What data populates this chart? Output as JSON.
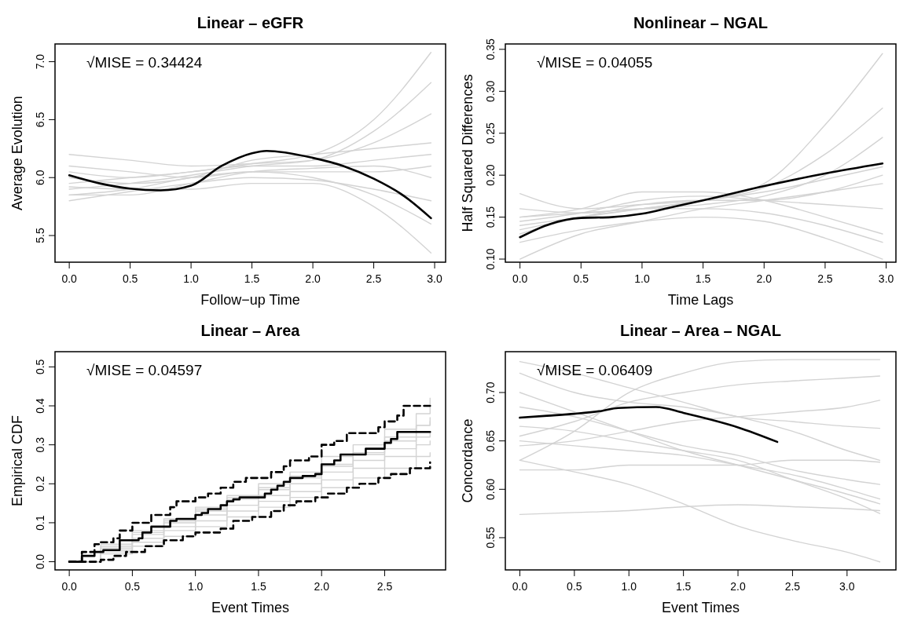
{
  "chart_data": [
    {
      "type": "line",
      "title": "Linear – eGFR",
      "xlabel": "Follow−up Time",
      "ylabel": "Average Evolution",
      "annotations": [
        "√MISE = 0.34424"
      ],
      "xlim": [
        -0.117,
        3.09
      ],
      "ylim": [
        5.27,
        7.153
      ],
      "xticks": [
        {
          "value": 0,
          "label": "0.0"
        },
        {
          "value": 0.5,
          "label": "0.5"
        },
        {
          "value": 1,
          "label": "1.0"
        },
        {
          "value": 1.5,
          "label": "1.5"
        },
        {
          "value": 2,
          "label": "2.0"
        },
        {
          "value": 2.5,
          "label": "2.5"
        },
        {
          "value": 3,
          "label": "3.0"
        }
      ],
      "yticks": [
        {
          "value": 5.5,
          "label": "5.5"
        },
        {
          "value": 6,
          "label": "6.0"
        },
        {
          "value": 6.5,
          "label": "6.5"
        },
        {
          "value": 7,
          "label": "7.0"
        }
      ],
      "x": [
        0,
        0.5,
        1,
        1.5,
        2,
        2.5,
        2.97
      ],
      "series": [
        {
          "color": "#d3d3d3",
          "values": [
            5.95,
            6.0,
            6.05,
            6.12,
            6.2,
            6.5,
            7.08
          ]
        },
        {
          "color": "#d3d3d3",
          "values": [
            5.9,
            5.95,
            6.02,
            6.1,
            6.15,
            6.4,
            6.82
          ]
        },
        {
          "color": "#d3d3d3",
          "values": [
            6.2,
            6.15,
            6.1,
            6.12,
            6.15,
            6.3,
            6.55
          ]
        },
        {
          "color": "#d3d3d3",
          "values": [
            6.05,
            6.0,
            6.05,
            6.1,
            6.1,
            6.15,
            6.2
          ]
        },
        {
          "color": "#d3d3d3",
          "values": [
            5.85,
            5.9,
            6.0,
            6.05,
            6.05,
            6.05,
            6.1
          ]
        },
        {
          "color": "#d3d3d3",
          "values": [
            5.8,
            5.88,
            5.95,
            6.0,
            5.98,
            5.9,
            5.8
          ]
        },
        {
          "color": "#d3d3d3",
          "values": [
            6.1,
            6.05,
            6.0,
            6.05,
            6.0,
            5.85,
            5.6
          ]
        },
        {
          "color": "#d3d3d3",
          "values": [
            5.92,
            5.9,
            5.9,
            5.95,
            5.95,
            5.75,
            5.35
          ]
        },
        {
          "color": "#d3d3d3",
          "values": [
            6.0,
            5.95,
            6.0,
            6.15,
            6.2,
            6.25,
            6.3
          ]
        },
        {
          "color": "#d3d3d3",
          "values": [
            5.85,
            5.85,
            5.95,
            6.05,
            6.08,
            6.1,
            6.0
          ]
        },
        {
          "color": "#000000",
          "x": [
            0,
            0.25,
            0.5,
            0.75,
            1,
            1.25,
            1.5,
            1.62,
            2,
            2.25,
            2.5,
            2.75,
            2.97
          ],
          "values": [
            6.02,
            5.95,
            5.905,
            5.89,
            5.93,
            6.1,
            6.21,
            6.23,
            6.17,
            6.1,
            5.99,
            5.84,
            5.65
          ]
        }
      ]
    },
    {
      "type": "line",
      "title": "Nonlinear – NGAL",
      "xlabel": "Time Lags",
      "ylabel": "Half Squared Differences",
      "annotations": [
        "√MISE = 0.04055"
      ],
      "xlim": [
        -0.12,
        3.08
      ],
      "ylim": [
        0.0963,
        0.3564
      ],
      "xticks": [
        {
          "value": 0,
          "label": "0.0"
        },
        {
          "value": 0.5,
          "label": "0.5"
        },
        {
          "value": 1,
          "label": "1.0"
        },
        {
          "value": 1.5,
          "label": "1.5"
        },
        {
          "value": 2,
          "label": "2.0"
        },
        {
          "value": 2.5,
          "label": "2.5"
        },
        {
          "value": 3,
          "label": "3.0"
        }
      ],
      "yticks": [
        {
          "value": 0.1,
          "label": "0.10"
        },
        {
          "value": 0.15,
          "label": "0.15"
        },
        {
          "value": 0.2,
          "label": "0.20"
        },
        {
          "value": 0.25,
          "label": "0.25"
        },
        {
          "value": 0.3,
          "label": "0.30"
        },
        {
          "value": 0.35,
          "label": "0.35"
        }
      ],
      "x": [
        0,
        0.5,
        1,
        1.5,
        2,
        2.5,
        2.97
      ],
      "series": [
        {
          "color": "#d3d3d3",
          "values": [
            0.14,
            0.15,
            0.16,
            0.17,
            0.19,
            0.26,
            0.345
          ]
        },
        {
          "color": "#d3d3d3",
          "values": [
            0.13,
            0.15,
            0.16,
            0.17,
            0.185,
            0.225,
            0.28
          ]
        },
        {
          "color": "#d3d3d3",
          "values": [
            0.15,
            0.155,
            0.16,
            0.165,
            0.175,
            0.2,
            0.245
          ]
        },
        {
          "color": "#d3d3d3",
          "values": [
            0.178,
            0.16,
            0.165,
            0.17,
            0.18,
            0.195,
            0.21
          ]
        },
        {
          "color": "#d3d3d3",
          "values": [
            0.145,
            0.155,
            0.17,
            0.175,
            0.17,
            0.165,
            0.16
          ]
        },
        {
          "color": "#d3d3d3",
          "values": [
            0.16,
            0.155,
            0.16,
            0.16,
            0.155,
            0.14,
            0.12
          ]
        },
        {
          "color": "#d3d3d3",
          "values": [
            0.12,
            0.135,
            0.145,
            0.15,
            0.145,
            0.125,
            0.1
          ]
        },
        {
          "color": "#d3d3d3",
          "values": [
            0.1,
            0.13,
            0.145,
            0.16,
            0.17,
            0.18,
            0.19
          ]
        },
        {
          "color": "#d3d3d3",
          "values": [
            0.135,
            0.15,
            0.165,
            0.17,
            0.17,
            0.18,
            0.2
          ]
        },
        {
          "color": "#d3d3d3",
          "values": [
            0.15,
            0.16,
            0.18,
            0.18,
            0.17,
            0.15,
            0.13
          ]
        },
        {
          "color": "#000000",
          "x": [
            0,
            0.25,
            0.5,
            0.75,
            1,
            1.25,
            1.5,
            2,
            2.5,
            2.97
          ],
          "values": [
            0.126,
            0.142,
            0.149,
            0.15,
            0.154,
            0.162,
            0.17,
            0.187,
            0.202,
            0.214
          ]
        }
      ]
    },
    {
      "type": "step",
      "title": "Linear – Area",
      "xlabel": "Event Times",
      "ylabel": "Empirical CDF",
      "annotations": [
        "√MISE = 0.04597"
      ],
      "xlim": [
        -0.113,
        2.983
      ],
      "ylim": [
        -0.021,
        0.539
      ],
      "xticks": [
        {
          "value": 0,
          "label": "0.0"
        },
        {
          "value": 0.5,
          "label": "0.5"
        },
        {
          "value": 1,
          "label": "1.0"
        },
        {
          "value": 1.5,
          "label": "1.5"
        },
        {
          "value": 2,
          "label": "2.0"
        },
        {
          "value": 2.5,
          "label": "2.5"
        }
      ],
      "yticks": [
        {
          "value": 0,
          "label": "0.0"
        },
        {
          "value": 0.1,
          "label": "0.1"
        },
        {
          "value": 0.2,
          "label": "0.2"
        },
        {
          "value": 0.3,
          "label": "0.3"
        },
        {
          "value": 0.4,
          "label": "0.4"
        },
        {
          "value": 0.5,
          "label": "0.5"
        }
      ],
      "x": [
        0,
        0.25,
        0.5,
        0.75,
        1,
        1.25,
        1.5,
        1.75,
        2,
        2.25,
        2.5,
        2.75,
        2.86
      ],
      "series": [
        {
          "color": "#d3d3d3",
          "values": [
            0,
            0.03,
            0.06,
            0.09,
            0.12,
            0.145,
            0.17,
            0.2,
            0.23,
            0.26,
            0.29,
            0.32,
            0.33
          ]
        },
        {
          "color": "#d3d3d3",
          "values": [
            0,
            0.045,
            0.08,
            0.11,
            0.14,
            0.17,
            0.2,
            0.23,
            0.27,
            0.3,
            0.34,
            0.38,
            0.42
          ]
        },
        {
          "color": "#d3d3d3",
          "values": [
            0,
            0.02,
            0.04,
            0.065,
            0.09,
            0.115,
            0.14,
            0.165,
            0.19,
            0.215,
            0.24,
            0.27,
            0.28
          ]
        },
        {
          "color": "#d3d3d3",
          "values": [
            0,
            0.035,
            0.07,
            0.1,
            0.13,
            0.16,
            0.185,
            0.215,
            0.245,
            0.275,
            0.31,
            0.35,
            0.37
          ]
        },
        {
          "color": "#d3d3d3",
          "values": [
            0,
            0.025,
            0.05,
            0.08,
            0.105,
            0.13,
            0.155,
            0.18,
            0.21,
            0.24,
            0.27,
            0.3,
            0.31
          ]
        },
        {
          "color": "#d3d3d3",
          "values": [
            0,
            0.04,
            0.075,
            0.105,
            0.135,
            0.165,
            0.19,
            0.22,
            0.25,
            0.28,
            0.32,
            0.35,
            0.36
          ]
        },
        {
          "color": "#000000",
          "line_style": "dashed",
          "x": [
            0,
            0.1,
            0.2,
            0.25,
            0.35,
            0.4,
            0.5,
            0.65,
            0.8,
            0.85,
            1,
            1.1,
            1.2,
            1.3,
            1.4,
            1.6,
            1.7,
            1.75,
            1.9,
            2,
            2.1,
            2.2,
            2.45,
            2.5,
            2.6,
            2.65,
            2.86
          ],
          "values": [
            0,
            0.025,
            0.045,
            0.05,
            0.06,
            0.08,
            0.1,
            0.12,
            0.14,
            0.155,
            0.165,
            0.175,
            0.19,
            0.205,
            0.215,
            0.23,
            0.245,
            0.26,
            0.27,
            0.3,
            0.31,
            0.33,
            0.345,
            0.36,
            0.375,
            0.4,
            0.4
          ]
        },
        {
          "color": "#000000",
          "line_style": "dashed",
          "x": [
            0,
            0.15,
            0.25,
            0.35,
            0.45,
            0.6,
            0.75,
            0.9,
            1,
            1.2,
            1.3,
            1.45,
            1.6,
            1.7,
            1.8,
            1.95,
            2.05,
            2.2,
            2.3,
            2.45,
            2.55,
            2.7,
            2.86
          ],
          "values": [
            0,
            0,
            0.005,
            0.015,
            0.025,
            0.04,
            0.055,
            0.065,
            0.075,
            0.085,
            0.105,
            0.115,
            0.13,
            0.145,
            0.155,
            0.165,
            0.175,
            0.19,
            0.2,
            0.215,
            0.225,
            0.24,
            0.255
          ]
        },
        {
          "color": "#000000",
          "x": [
            0,
            0.1,
            0.2,
            0.27,
            0.4,
            0.55,
            0.58,
            0.65,
            0.8,
            0.85,
            1,
            1.05,
            1.1,
            1.2,
            1.25,
            1.3,
            1.35,
            1.55,
            1.6,
            1.65,
            1.7,
            1.75,
            1.85,
            1.95,
            2,
            2.1,
            2.15,
            2.35,
            2.5,
            2.55,
            2.6,
            2.86
          ],
          "values": [
            0,
            0.015,
            0.025,
            0.03,
            0.055,
            0.06,
            0.075,
            0.09,
            0.105,
            0.11,
            0.12,
            0.125,
            0.135,
            0.145,
            0.155,
            0.16,
            0.165,
            0.175,
            0.185,
            0.195,
            0.205,
            0.215,
            0.22,
            0.225,
            0.25,
            0.26,
            0.275,
            0.29,
            0.305,
            0.315,
            0.333,
            0.333
          ]
        }
      ]
    },
    {
      "type": "line",
      "title": "Linear – Area – NGAL",
      "xlabel": "Event Times",
      "ylabel": "Concordance",
      "annotations": [
        "√MISE = 0.06409"
      ],
      "xlim": [
        -0.133,
        3.448
      ],
      "ylim": [
        0.5167,
        0.7422
      ],
      "xticks": [
        {
          "value": 0,
          "label": "0.0"
        },
        {
          "value": 0.5,
          "label": "0.5"
        },
        {
          "value": 1,
          "label": "1.0"
        },
        {
          "value": 1.5,
          "label": "1.5"
        },
        {
          "value": 2,
          "label": "2.0"
        },
        {
          "value": 2.5,
          "label": "2.5"
        },
        {
          "value": 3,
          "label": "3.0"
        }
      ],
      "yticks": [
        {
          "value": 0.55,
          "label": "0.55"
        },
        {
          "value": 0.6,
          "label": "0.60"
        },
        {
          "value": 0.65,
          "label": "0.65"
        },
        {
          "value": 0.7,
          "label": "0.70"
        }
      ],
      "x": [
        0,
        0.5,
        1,
        1.5,
        2,
        2.5,
        3,
        3.3
      ],
      "series": [
        {
          "color": "#d3d3d3",
          "values": [
            0.732,
            0.72,
            0.705,
            0.69,
            0.675,
            0.67,
            0.665,
            0.663
          ]
        },
        {
          "color": "#d3d3d3",
          "values": [
            0.63,
            0.66,
            0.7,
            0.72,
            0.732,
            0.734,
            0.734,
            0.734
          ]
        },
        {
          "color": "#d3d3d3",
          "values": [
            0.574,
            0.576,
            0.578,
            0.582,
            0.584,
            0.582,
            0.58,
            0.578
          ]
        },
        {
          "color": "#d3d3d3",
          "values": [
            0.63,
            0.618,
            0.605,
            0.585,
            0.562,
            0.547,
            0.535,
            0.525
          ]
        },
        {
          "color": "#d3d3d3",
          "values": [
            0.72,
            0.7,
            0.69,
            0.685,
            0.675,
            0.66,
            0.64,
            0.63
          ]
        },
        {
          "color": "#d3d3d3",
          "values": [
            0.7,
            0.68,
            0.66,
            0.64,
            0.625,
            0.61,
            0.595,
            0.585
          ]
        },
        {
          "color": "#d3d3d3",
          "values": [
            0.665,
            0.66,
            0.65,
            0.64,
            0.63,
            0.61,
            0.59,
            0.575
          ]
        },
        {
          "color": "#d3d3d3",
          "values": [
            0.645,
            0.65,
            0.66,
            0.67,
            0.675,
            0.68,
            0.685,
            0.692
          ]
        },
        {
          "color": "#d3d3d3",
          "values": [
            0.655,
            0.67,
            0.69,
            0.7,
            0.708,
            0.712,
            0.715,
            0.717
          ]
        },
        {
          "color": "#d3d3d3",
          "values": [
            0.62,
            0.62,
            0.625,
            0.625,
            0.625,
            0.63,
            0.63,
            0.628
          ]
        },
        {
          "color": "#d3d3d3",
          "values": [
            0.685,
            0.675,
            0.66,
            0.645,
            0.635,
            0.62,
            0.61,
            0.605
          ]
        },
        {
          "color": "#d3d3d3",
          "values": [
            0.65,
            0.645,
            0.64,
            0.635,
            0.625,
            0.615,
            0.6,
            0.59
          ]
        },
        {
          "color": "#000000",
          "x": [
            0,
            0.25,
            0.5,
            0.75,
            0.9,
            1.25,
            1.5,
            1.75,
            2,
            2.36
          ],
          "values": [
            0.674,
            0.676,
            0.678,
            0.681,
            0.684,
            0.685,
            0.679,
            0.672,
            0.664,
            0.649
          ]
        }
      ]
    }
  ]
}
